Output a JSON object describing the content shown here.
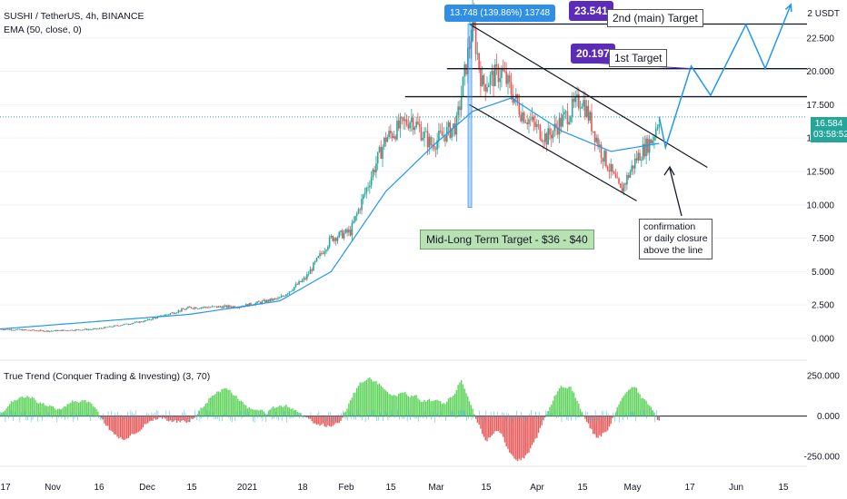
{
  "header": {
    "symbol": "SUSHI / TetherUS, 4h, BINANCE",
    "ema": "EMA (50, close, 0)",
    "indicator": "True Trend (Conquer Trading & Investing) (3, 70)"
  },
  "colors": {
    "up": "#26a69a",
    "down": "#ef5350",
    "ema": "#2196f3",
    "projection": "#2196f3",
    "badge_purple": "#5b2cb8",
    "badge_blue": "#2f8fe6",
    "osc_green": "#5ed35b",
    "osc_red": "#e85a5a",
    "osc_cyan": "#4fc3e8"
  },
  "annotations": {
    "measure": "13.748 (139.86%) 13748",
    "target2_value": "23.541",
    "target2_label": "2nd (main) Target",
    "target1_value": "20.197",
    "target1_label": "1st Target",
    "midlong": "Mid-Long Term Target - $36 - $40",
    "note_line1": "confirmation",
    "note_line2": "or daily closure",
    "note_line3": "above the line"
  },
  "price_axis": {
    "unit": "USDT",
    "top_label": "2",
    "labels": [
      "22.500",
      "20.000",
      "17.500",
      "15.000",
      "12.500",
      "10.000",
      "7.500",
      "5.000",
      "2.500",
      "0.000"
    ],
    "current_price": "16.584",
    "countdown": "03:58:52"
  },
  "osc_axis": {
    "labels": [
      "250.000",
      "0.000",
      "-250.000"
    ]
  },
  "time_axis": {
    "labels": [
      "17",
      "Nov",
      "16",
      "Dec",
      "15",
      "2021",
      "18",
      "Feb",
      "15",
      "Mar",
      "15",
      "Apr",
      "15",
      "May",
      "17",
      "Jun",
      "15"
    ]
  },
  "chart_data": {
    "type": "candlestick",
    "x_start": "2020-10-17",
    "x_end": "2021-06-25",
    "ylim": [
      -1.5,
      25.0
    ],
    "price_path": [
      [
        "2020-10-17",
        0.7
      ],
      [
        "2020-11-01",
        0.55
      ],
      [
        "2020-11-16",
        0.7
      ],
      [
        "2020-12-01",
        1.3
      ],
      [
        "2020-12-15",
        2.3
      ],
      [
        "2020-12-31",
        2.4
      ],
      [
        "2021-01-12",
        3.0
      ],
      [
        "2021-01-20",
        4.5
      ],
      [
        "2021-01-28",
        7.5
      ],
      [
        "2021-02-03",
        8.0
      ],
      [
        "2021-02-10",
        12.5
      ],
      [
        "2021-02-14",
        15.0
      ],
      [
        "2021-02-22",
        16.5
      ],
      [
        "2021-02-28",
        14.5
      ],
      [
        "2021-03-08",
        16.0
      ],
      [
        "2021-03-13",
        23.5
      ],
      [
        "2021-03-16",
        19.0
      ],
      [
        "2021-03-22",
        20.0
      ],
      [
        "2021-03-28",
        17.0
      ],
      [
        "2021-04-05",
        15.0
      ],
      [
        "2021-04-16",
        18.0
      ],
      [
        "2021-04-22",
        14.0
      ],
      [
        "2021-04-26",
        12.0
      ],
      [
        "2021-04-28",
        11.0
      ],
      [
        "2021-05-03",
        13.5
      ],
      [
        "2021-05-08",
        15.0
      ],
      [
        "2021-05-10",
        16.6
      ]
    ],
    "ema50_path": [
      [
        "2020-10-17",
        0.7
      ],
      [
        "2020-12-15",
        1.8
      ],
      [
        "2021-01-12",
        2.8
      ],
      [
        "2021-01-28",
        5.0
      ],
      [
        "2021-02-14",
        11.0
      ],
      [
        "2021-03-01",
        14.5
      ],
      [
        "2021-03-13",
        17.0
      ],
      [
        "2021-03-25",
        18.0
      ],
      [
        "2021-04-10",
        15.5
      ],
      [
        "2021-04-25",
        14.0
      ],
      [
        "2021-05-10",
        14.6
      ]
    ],
    "horizontal_levels": [
      {
        "from": "2021-03-12",
        "to": "2021-06-25",
        "price": 23.541
      },
      {
        "from": "2021-03-05",
        "to": "2021-06-25",
        "price": 20.197
      },
      {
        "from": "2021-02-20",
        "to": "2021-06-25",
        "price": 18.1
      }
    ],
    "channel": [
      {
        "from": [
          "2021-03-12",
          23.541
        ],
        "to": [
          "2021-05-25",
          12.8
        ]
      },
      {
        "from": [
          "2021-03-12",
          17.5
        ],
        "to": [
          "2021-05-03",
          10.3
        ]
      }
    ],
    "projection": [
      [
        "2021-05-10",
        16.6
      ],
      [
        "2021-05-12",
        14.3
      ],
      [
        "2021-05-20",
        20.4
      ],
      [
        "2021-05-26",
        18.2
      ],
      [
        "2021-06-06",
        23.5
      ],
      [
        "2021-06-12",
        20.2
      ],
      [
        "2021-06-20",
        25.0
      ]
    ],
    "oscillator": {
      "ylim": [
        -300,
        330
      ],
      "zero_line": 0
    }
  }
}
